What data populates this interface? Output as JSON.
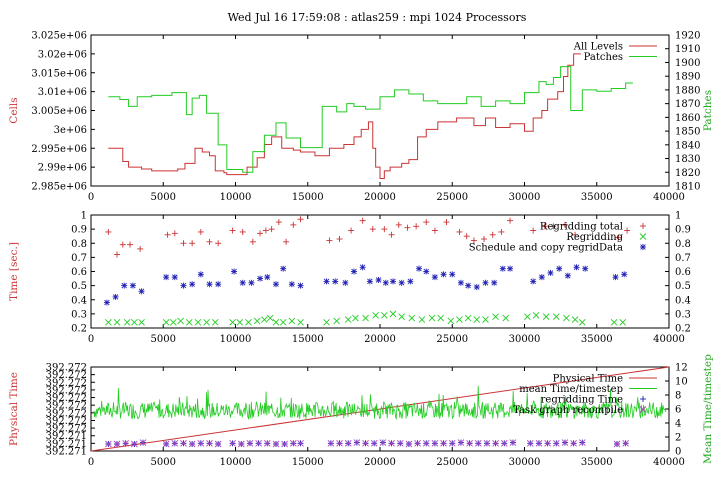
{
  "title": "Wed Jul 16 17:59:08 : atlas259 : mpi 1024 Processors",
  "colors": {
    "red": "#cc3333",
    "green": "#22cc22",
    "blue": "#1f1fb4",
    "magenta": "#b040c0",
    "text": "#000000"
  },
  "chart_data": [
    {
      "type": "line",
      "ylabel": "Cells",
      "y2label": "Patches",
      "xlim": [
        0,
        40000
      ],
      "ylim": [
        2985000,
        3025000
      ],
      "y2lim": [
        1810,
        1920
      ],
      "xticks": [
        "0",
        "5000",
        "10000",
        "15000",
        "20000",
        "25000",
        "30000",
        "35000",
        "40000"
      ],
      "yticks": [
        "2.985e+06",
        "2.99e+06",
        "2.995e+06",
        "3e+06",
        "3.005e+06",
        "3.01e+06",
        "3.015e+06",
        "3.02e+06",
        "3.025e+06"
      ],
      "y2ticks": [
        "1810",
        "1820",
        "1830",
        "1840",
        "1850",
        "1860",
        "1870",
        "1880",
        "1890",
        "1900",
        "1910",
        "1920"
      ],
      "legend_position": "top-right",
      "series": [
        {
          "name": "All Levels",
          "axis": "y",
          "color": "#cc3333",
          "x": [
            1200,
            2200,
            2600,
            3500,
            4200,
            6000,
            6500,
            7200,
            7700,
            8200,
            8600,
            9200,
            9400,
            10000,
            10800,
            11500,
            12000,
            12500,
            13200,
            14000,
            14500,
            15500,
            16500,
            17500,
            18200,
            18700,
            19200,
            19500,
            19700,
            20000,
            20300,
            20700,
            21500,
            22000,
            22600,
            23200,
            24000,
            25300,
            26500,
            27300,
            28000,
            29000,
            30000,
            30600,
            31200,
            31600,
            32300,
            32700,
            33000,
            33400
          ],
          "y": [
            2995000,
            2991500,
            2990000,
            2989500,
            2989000,
            2989500,
            2991000,
            2995000,
            2994000,
            2993000,
            2989000,
            2988500,
            2988000,
            2988000,
            2990000,
            2992500,
            2996000,
            2998000,
            2995000,
            2994500,
            2994000,
            2993000,
            2995000,
            2996000,
            2998000,
            3000000,
            3002000,
            2995000,
            2990000,
            2987000,
            2989000,
            2990000,
            2991000,
            2992000,
            2998000,
            3000000,
            3002000,
            3003000,
            3001000,
            3003000,
            3000500,
            3001500,
            2999500,
            3003000,
            3005000,
            3008000,
            3010000,
            3014000,
            3017000,
            3020000
          ]
        },
        {
          "name": "Patches",
          "axis": "y2",
          "color": "#22cc22",
          "x": [
            1200,
            2000,
            2600,
            3200,
            4200,
            5600,
            6600,
            7000,
            7500,
            8000,
            8800,
            9400,
            10500,
            11200,
            12000,
            12800,
            13500,
            14500,
            16000,
            17000,
            17700,
            18200,
            19000,
            20000,
            21000,
            22000,
            23000,
            24000,
            25000,
            26000,
            27000,
            28000,
            29000,
            30000,
            31000,
            31500,
            32000,
            32500,
            33200,
            34000,
            35000,
            36000,
            37000
          ],
          "y": [
            1875,
            1873,
            1868,
            1875,
            1876,
            1878,
            1862,
            1874,
            1876,
            1863,
            1840,
            1822,
            1820,
            1835,
            1847,
            1856,
            1845,
            1838,
            1868,
            1864,
            1870,
            1868,
            1866,
            1875,
            1880,
            1877,
            1872,
            1870,
            1870,
            1875,
            1868,
            1872,
            1870,
            1878,
            1886,
            1884,
            1889,
            1897,
            1865,
            1880,
            1879,
            1881,
            1885
          ]
        }
      ]
    },
    {
      "type": "scatter",
      "ylabel": "Time [sec.]",
      "xlim": [
        0,
        40000
      ],
      "ylim": [
        0.2,
        1.0
      ],
      "xticks": [
        "0",
        "5000",
        "10000",
        "15000",
        "20000",
        "25000",
        "30000",
        "35000",
        "40000"
      ],
      "yticks": [
        "0.2",
        "0.3",
        "0.4",
        "0.5",
        "0.6",
        "0.7",
        "0.8",
        "0.9",
        "1"
      ],
      "legend_position": "top-right",
      "series": [
        {
          "name": "Regridding total",
          "marker": "+",
          "color": "#cc3333",
          "x": [
            1200,
            1800,
            2200,
            2700,
            3400,
            5300,
            5800,
            6400,
            7000,
            7600,
            8200,
            8800,
            9800,
            10500,
            11200,
            11700,
            12100,
            12500,
            13000,
            13500,
            14000,
            14500,
            16500,
            17200,
            18000,
            18800,
            19500,
            20300,
            20800,
            21300,
            21900,
            22500,
            23200,
            23800,
            24600,
            25500,
            26000,
            26500,
            27200,
            27800,
            28400,
            29000,
            30600,
            31400,
            32000,
            32800,
            33500,
            36500,
            37100
          ],
          "y": [
            0.88,
            0.72,
            0.79,
            0.79,
            0.76,
            0.86,
            0.87,
            0.8,
            0.8,
            0.88,
            0.81,
            0.8,
            0.89,
            0.88,
            0.81,
            0.87,
            0.89,
            0.9,
            0.95,
            0.81,
            0.93,
            0.97,
            0.82,
            0.83,
            0.89,
            0.96,
            0.9,
            0.9,
            0.86,
            0.93,
            0.91,
            0.92,
            0.95,
            0.89,
            0.95,
            0.88,
            0.85,
            0.82,
            0.83,
            0.86,
            0.88,
            0.96,
            0.89,
            0.92,
            0.92,
            0.93,
            0.86,
            0.84,
            0.89
          ]
        },
        {
          "name": "Regridding",
          "marker": "x",
          "color": "#22cc22",
          "x": [
            1200,
            1800,
            2500,
            3000,
            3500,
            5200,
            5700,
            6200,
            6800,
            7400,
            8000,
            8600,
            9800,
            10300,
            10900,
            11500,
            12000,
            12400,
            12800,
            13300,
            13900,
            14500,
            16300,
            17000,
            17800,
            18300,
            19000,
            19700,
            20300,
            20900,
            21500,
            22200,
            22900,
            23600,
            24200,
            24900,
            25500,
            26100,
            26700,
            27300,
            28000,
            28700,
            30200,
            30800,
            31500,
            32200,
            32900,
            33500,
            34000,
            36200,
            36800
          ],
          "y": [
            0.24,
            0.24,
            0.24,
            0.24,
            0.24,
            0.24,
            0.24,
            0.25,
            0.24,
            0.24,
            0.24,
            0.24,
            0.24,
            0.24,
            0.24,
            0.25,
            0.26,
            0.27,
            0.24,
            0.24,
            0.25,
            0.24,
            0.24,
            0.25,
            0.26,
            0.27,
            0.27,
            0.29,
            0.29,
            0.3,
            0.28,
            0.27,
            0.26,
            0.27,
            0.27,
            0.25,
            0.26,
            0.27,
            0.26,
            0.26,
            0.28,
            0.27,
            0.28,
            0.29,
            0.28,
            0.28,
            0.27,
            0.26,
            0.24,
            0.24,
            0.24
          ]
        },
        {
          "name": "Schedule and copy regridData",
          "marker": "*",
          "color": "#1f1fb4",
          "x": [
            1100,
            1700,
            2300,
            2900,
            3500,
            5200,
            5800,
            6400,
            7000,
            7600,
            8200,
            8800,
            9900,
            10500,
            11100,
            11700,
            12200,
            12800,
            13300,
            13900,
            14500,
            16300,
            16900,
            17600,
            18200,
            18800,
            19300,
            19900,
            20400,
            20900,
            21500,
            22100,
            22700,
            23200,
            23800,
            24400,
            25000,
            25600,
            26100,
            26700,
            27300,
            27900,
            28500,
            29000,
            30600,
            31200,
            31800,
            32400,
            33000,
            33600,
            34200,
            36300,
            36900
          ],
          "y": [
            0.38,
            0.42,
            0.5,
            0.5,
            0.46,
            0.56,
            0.56,
            0.5,
            0.51,
            0.58,
            0.51,
            0.51,
            0.6,
            0.52,
            0.52,
            0.55,
            0.56,
            0.51,
            0.62,
            0.51,
            0.5,
            0.53,
            0.53,
            0.52,
            0.6,
            0.63,
            0.53,
            0.54,
            0.52,
            0.53,
            0.52,
            0.53,
            0.62,
            0.6,
            0.56,
            0.58,
            0.58,
            0.52,
            0.5,
            0.49,
            0.52,
            0.52,
            0.62,
            0.62,
            0.53,
            0.56,
            0.59,
            0.62,
            0.57,
            0.63,
            0.62,
            0.56,
            0.58
          ]
        }
      ]
    },
    {
      "type": "line",
      "ylabel": "Physical Time",
      "y2label": "Mean Time/timestep",
      "xlim": [
        0,
        40000
      ],
      "ylim": [
        0,
        1
      ],
      "y2lim": [
        0,
        12
      ],
      "xticks": [
        "0",
        "5000",
        "10000",
        "15000",
        "20000",
        "25000",
        "30000",
        "35000",
        "40000"
      ],
      "yticks": [
        "392.271",
        "392.271",
        "392.271",
        "392.272",
        "392.272",
        "392.272",
        "392.272",
        "392.272",
        "392.272",
        "392.272",
        "392.272",
        "392.272"
      ],
      "y2ticks": [
        "0",
        "2",
        "4",
        "6",
        "8",
        "10",
        "12"
      ],
      "legend_position": "top-right",
      "series": [
        {
          "name": "Physical Time",
          "axis": "y",
          "color": "#cc3333",
          "x": [
            0,
            40000
          ],
          "y": [
            0,
            1
          ]
        },
        {
          "name": "mean Time/timestep",
          "axis": "y2",
          "color": "#22cc22",
          "baseline": 5.8,
          "amplitude": 1.2,
          "x_range": [
            200,
            39800
          ]
        },
        {
          "name": "regridding Time",
          "axis": "y2",
          "marker": "+",
          "color": "#1f1fb4",
          "x": [
            1200,
            1800,
            2400,
            3000,
            3600,
            5200,
            5800,
            6400,
            7000,
            7600,
            8200,
            8800,
            9800,
            10400,
            11000,
            11600,
            12200,
            12800,
            13400,
            14000,
            14500,
            16600,
            17200,
            17800,
            18400,
            19000,
            19600,
            20200,
            20800,
            21400,
            22000,
            22600,
            23200,
            23800,
            24400,
            25000,
            25600,
            26200,
            26800,
            27400,
            28000,
            28600,
            29200,
            30400,
            31000,
            31600,
            32200,
            32800,
            33400,
            34000,
            36400,
            37000
          ],
          "y": [
            1.0,
            1.0,
            1.1,
            1.0,
            1.2,
            1.0,
            1.1,
            1.1,
            1.0,
            1.1,
            1.1,
            1.0,
            1.1,
            1.0,
            1.1,
            1.1,
            1.1,
            1.0,
            1.0,
            1.1,
            1.1,
            1.1,
            1.1,
            1.1,
            1.2,
            1.1,
            1.1,
            1.2,
            1.1,
            1.1,
            1.0,
            1.1,
            1.1,
            1.1,
            1.1,
            1.1,
            1.2,
            1.1,
            1.1,
            1.1,
            1.1,
            1.1,
            1.2,
            1.1,
            1.1,
            1.1,
            1.1,
            1.2,
            1.1,
            1.2,
            1.0,
            1.1
          ]
        },
        {
          "name": "Task graph recompile",
          "axis": "y2",
          "marker": "x",
          "color": "#b040c0",
          "x": [
            1200,
            1800,
            2400,
            3000,
            3600,
            5200,
            5800,
            6400,
            7000,
            7600,
            8200,
            8800,
            9800,
            10400,
            11000,
            11600,
            12200,
            12800,
            13400,
            14000,
            14500,
            16600,
            17200,
            17800,
            18400,
            19000,
            19600,
            20200,
            20800,
            21400,
            22000,
            22600,
            23200,
            23800,
            24400,
            25000,
            25600,
            26200,
            26800,
            27400,
            28000,
            28600,
            29200,
            30400,
            31000,
            31600,
            32200,
            32800,
            33400,
            34000,
            36400,
            37000
          ],
          "y": [
            1.0,
            1.0,
            1.1,
            1.0,
            1.2,
            1.0,
            1.1,
            1.1,
            1.0,
            1.1,
            1.1,
            1.0,
            1.1,
            1.0,
            1.1,
            1.1,
            1.1,
            1.0,
            1.0,
            1.1,
            1.1,
            1.1,
            1.1,
            1.1,
            1.2,
            1.1,
            1.1,
            1.2,
            1.1,
            1.1,
            1.0,
            1.1,
            1.1,
            1.1,
            1.1,
            1.1,
            1.2,
            1.1,
            1.1,
            1.1,
            1.1,
            1.1,
            1.2,
            1.1,
            1.1,
            1.1,
            1.1,
            1.2,
            1.1,
            1.2,
            1.0,
            1.1
          ]
        }
      ]
    }
  ]
}
